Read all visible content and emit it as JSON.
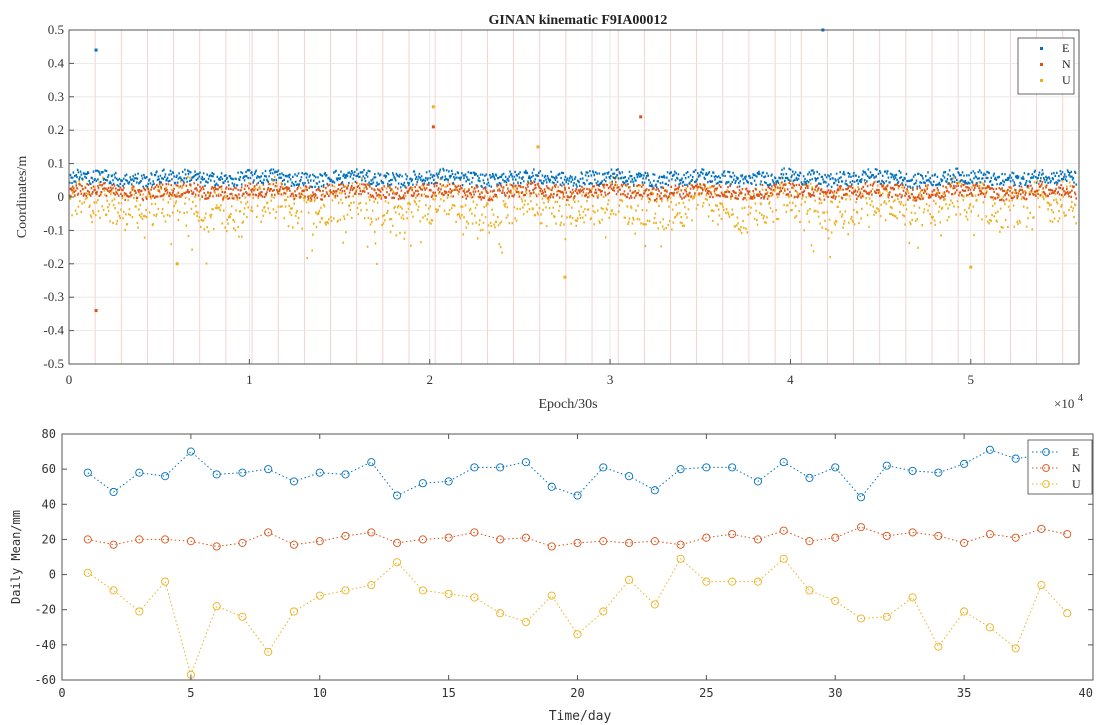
{
  "chart_data": [
    {
      "type": "scatter",
      "title": "GINAN kinematic F9IA00012",
      "xlabel": "Epoch/30s",
      "ylabel": "Coordinates/m",
      "x_exponent_label": "×10",
      "x_exponent_power": "4",
      "xlim": [
        0,
        5.6
      ],
      "ylim": [
        -0.5,
        0.5
      ],
      "x_ticks": [
        "0",
        "1",
        "2",
        "3",
        "4",
        "5"
      ],
      "y_ticks": [
        "-0.5",
        "-0.4",
        "-0.3",
        "-0.2",
        "-0.1",
        "0",
        "0.1",
        "0.2",
        "0.3",
        "0.4",
        "0.5"
      ],
      "grid": true,
      "legend_position": "top-right",
      "series": [
        {
          "name": "E",
          "color": "#0072BD",
          "typical_center": 0.06,
          "typical_spread": 0.02,
          "outliers": [
            [
              0.15,
              0.44
            ],
            [
              4.18,
              0.5
            ]
          ]
        },
        {
          "name": "N",
          "color": "#D95319",
          "typical_center": 0.02,
          "typical_spread": 0.02,
          "outliers": [
            [
              0.15,
              -0.34
            ],
            [
              2.02,
              0.21
            ],
            [
              3.17,
              0.24
            ]
          ]
        },
        {
          "name": "U",
          "color": "#EDB120",
          "typical_center": -0.02,
          "typical_spread": 0.06,
          "outliers": [
            [
              2.02,
              0.27
            ],
            [
              2.6,
              0.15
            ],
            [
              2.75,
              -0.24
            ],
            [
              5.0,
              -0.21
            ],
            [
              0.6,
              -0.2
            ]
          ]
        }
      ]
    },
    {
      "type": "line",
      "title": "",
      "xlabel": "Time/day",
      "ylabel": "Daily Mean/mm",
      "xlim": [
        0,
        40
      ],
      "ylim": [
        -60,
        80
      ],
      "x_ticks": [
        "0",
        "5",
        "10",
        "15",
        "20",
        "25",
        "30",
        "35",
        "40"
      ],
      "y_ticks": [
        "-60",
        "-40",
        "-20",
        "0",
        "20",
        "40",
        "60",
        "80"
      ],
      "grid": false,
      "legend_position": "top-right",
      "x": [
        1,
        2,
        3,
        4,
        5,
        6,
        7,
        8,
        9,
        10,
        11,
        12,
        13,
        14,
        15,
        16,
        17,
        18,
        19,
        20,
        21,
        22,
        23,
        24,
        25,
        26,
        27,
        28,
        29,
        30,
        31,
        32,
        33,
        34,
        35,
        36,
        37,
        38,
        39
      ],
      "series": [
        {
          "name": "E",
          "color": "#0072BD",
          "values": [
            58,
            47,
            58,
            56,
            70,
            57,
            58,
            60,
            53,
            58,
            57,
            64,
            45,
            52,
            53,
            61,
            61,
            64,
            50,
            45,
            61,
            56,
            48,
            60,
            61,
            61,
            53,
            64,
            55,
            61,
            44,
            62,
            59,
            58,
            63,
            71,
            66,
            68,
            62
          ]
        },
        {
          "name": "N",
          "color": "#D95319",
          "values": [
            20,
            17,
            20,
            20,
            19,
            16,
            18,
            24,
            17,
            19,
            22,
            24,
            18,
            20,
            21,
            24,
            20,
            21,
            16,
            18,
            19,
            18,
            19,
            17,
            21,
            23,
            20,
            25,
            19,
            21,
            27,
            22,
            24,
            22,
            18,
            23,
            21,
            26,
            23
          ]
        },
        {
          "name": "U",
          "color": "#EDB120",
          "values": [
            1,
            -9,
            -21,
            -4,
            -57,
            -18,
            -24,
            -44,
            -21,
            -12,
            -9,
            -6,
            7,
            -9,
            -11,
            -13,
            -22,
            -27,
            -12,
            -34,
            -21,
            -3,
            -17,
            9,
            -4,
            -4,
            -4,
            9,
            -9,
            -15,
            -25,
            -24,
            -13,
            -41,
            -21,
            -30,
            -42,
            -6,
            -22
          ]
        }
      ]
    }
  ]
}
